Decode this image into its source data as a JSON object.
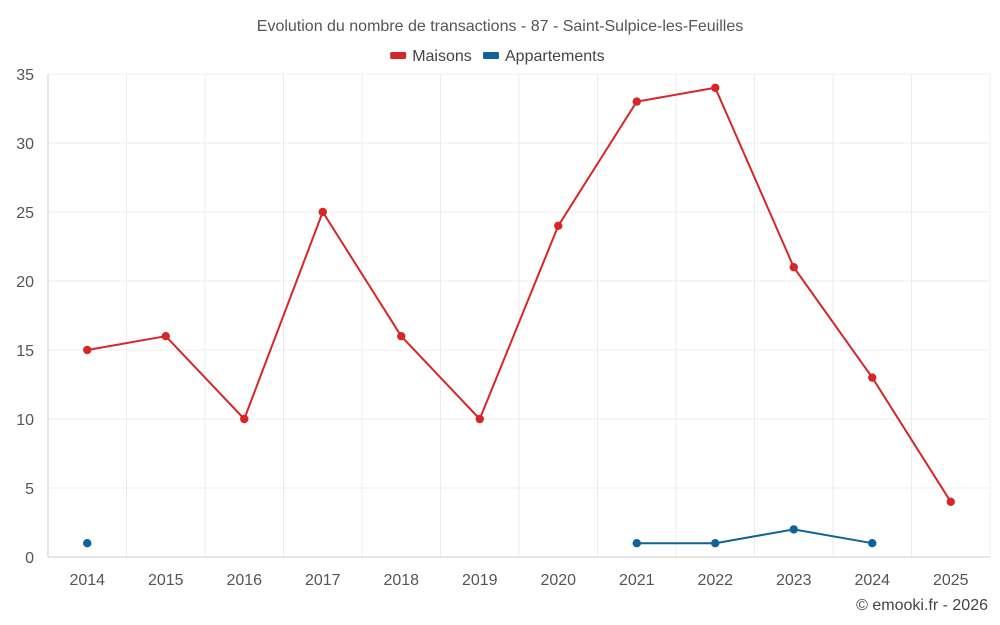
{
  "chart_data": {
    "type": "line",
    "title": "Evolution du nombre de transactions - 87 - Saint-Sulpice-les-Feuilles",
    "categories": [
      "2014",
      "2015",
      "2016",
      "2017",
      "2018",
      "2019",
      "2020",
      "2021",
      "2022",
      "2023",
      "2024",
      "2025"
    ],
    "ylim": [
      0,
      35
    ],
    "yticks": [
      0,
      5,
      10,
      15,
      20,
      25,
      30,
      35
    ],
    "grid": true,
    "legend_position": "top-center",
    "series": [
      {
        "name": "Maisons",
        "color": "#d62728",
        "values": [
          15,
          16,
          10,
          25,
          16,
          10,
          24,
          33,
          34,
          21,
          13,
          4
        ]
      },
      {
        "name": "Appartements",
        "color": "#0f6399",
        "values": [
          1,
          null,
          null,
          null,
          null,
          null,
          null,
          1,
          1,
          2,
          1,
          null
        ]
      }
    ]
  },
  "credit": "© emooki.fr - 2026"
}
